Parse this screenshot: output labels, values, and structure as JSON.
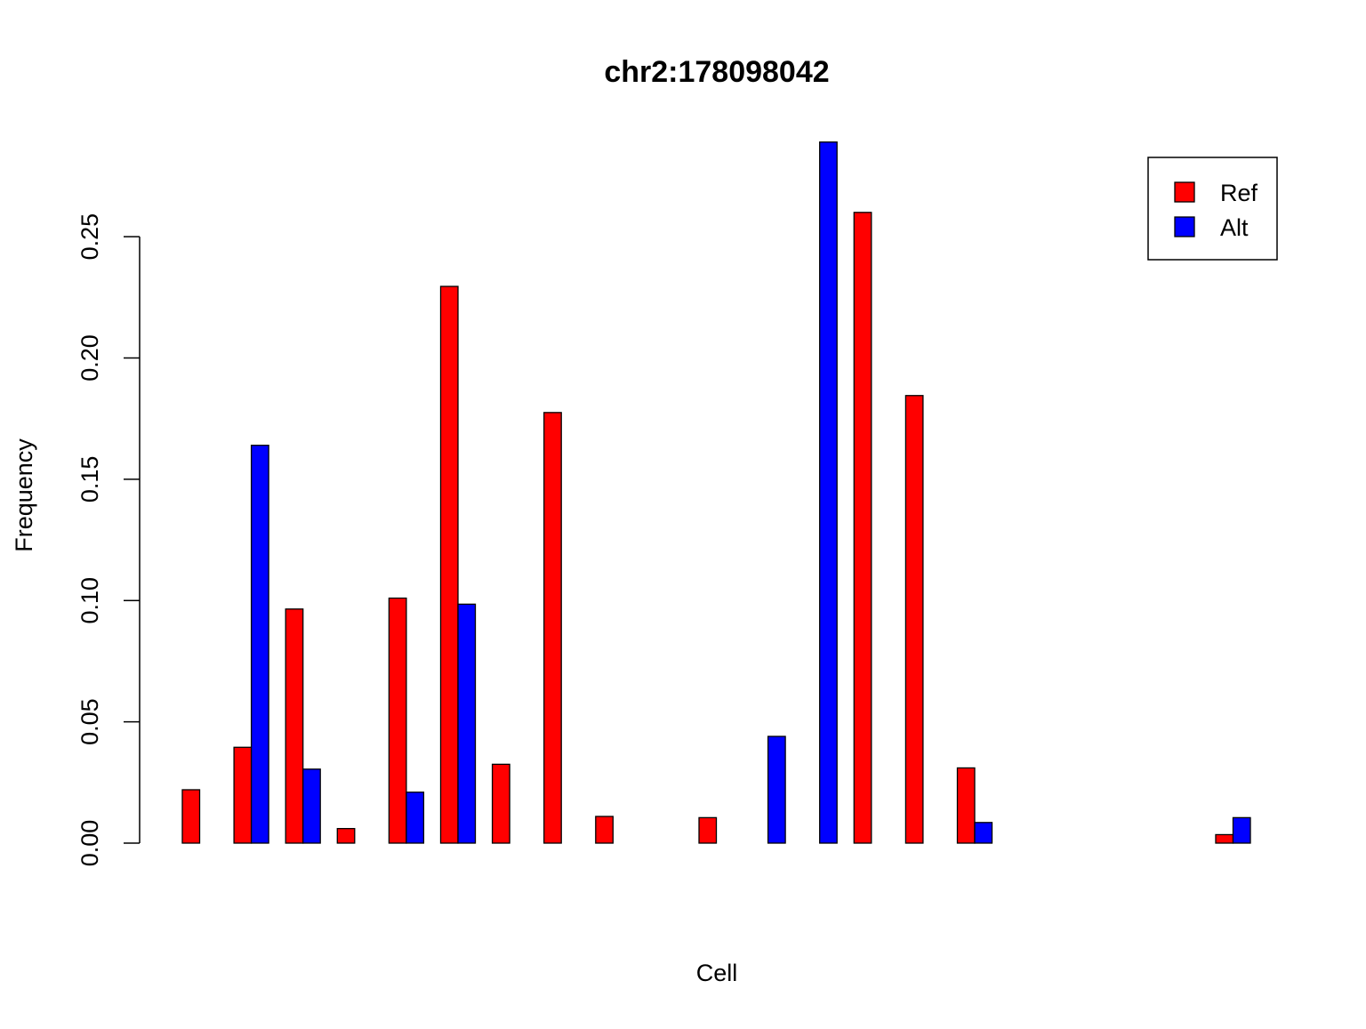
{
  "chart_data": {
    "type": "bar",
    "title": "chr2:178098042",
    "xlabel": "Cell",
    "ylabel": "Frequency",
    "ylim": [
      0,
      0.29
    ],
    "yticks": [
      "0.00",
      "0.05",
      "0.10",
      "0.15",
      "0.20",
      "0.25"
    ],
    "grid": false,
    "legend_position": "top-right",
    "bar_mode": "grouped",
    "categories": [
      "",
      "",
      "",
      "",
      "",
      "",
      "",
      "",
      "",
      "",
      "",
      "",
      "",
      "",
      "",
      "",
      "",
      "",
      "",
      "",
      ""
    ],
    "series": [
      {
        "name": "Ref",
        "color": "#ff0000",
        "values": [
          0.022,
          0.0395,
          0.0965,
          0.006,
          0.101,
          0.2295,
          0.0325,
          0.1775,
          0.011,
          0,
          0.0105,
          0,
          0,
          0.26,
          0.1845,
          0.031,
          0,
          0,
          0,
          0,
          0.0035
        ]
      },
      {
        "name": "Alt",
        "color": "#0000ff",
        "values": [
          0,
          0.164,
          0.0305,
          0,
          0.021,
          0.0985,
          0,
          0,
          0,
          0,
          0,
          0.044,
          0.289,
          0,
          0,
          0.0085,
          0,
          0,
          0,
          0,
          0.0105
        ]
      }
    ],
    "absent_groups": [
      9,
      16,
      17,
      18,
      19
    ]
  }
}
